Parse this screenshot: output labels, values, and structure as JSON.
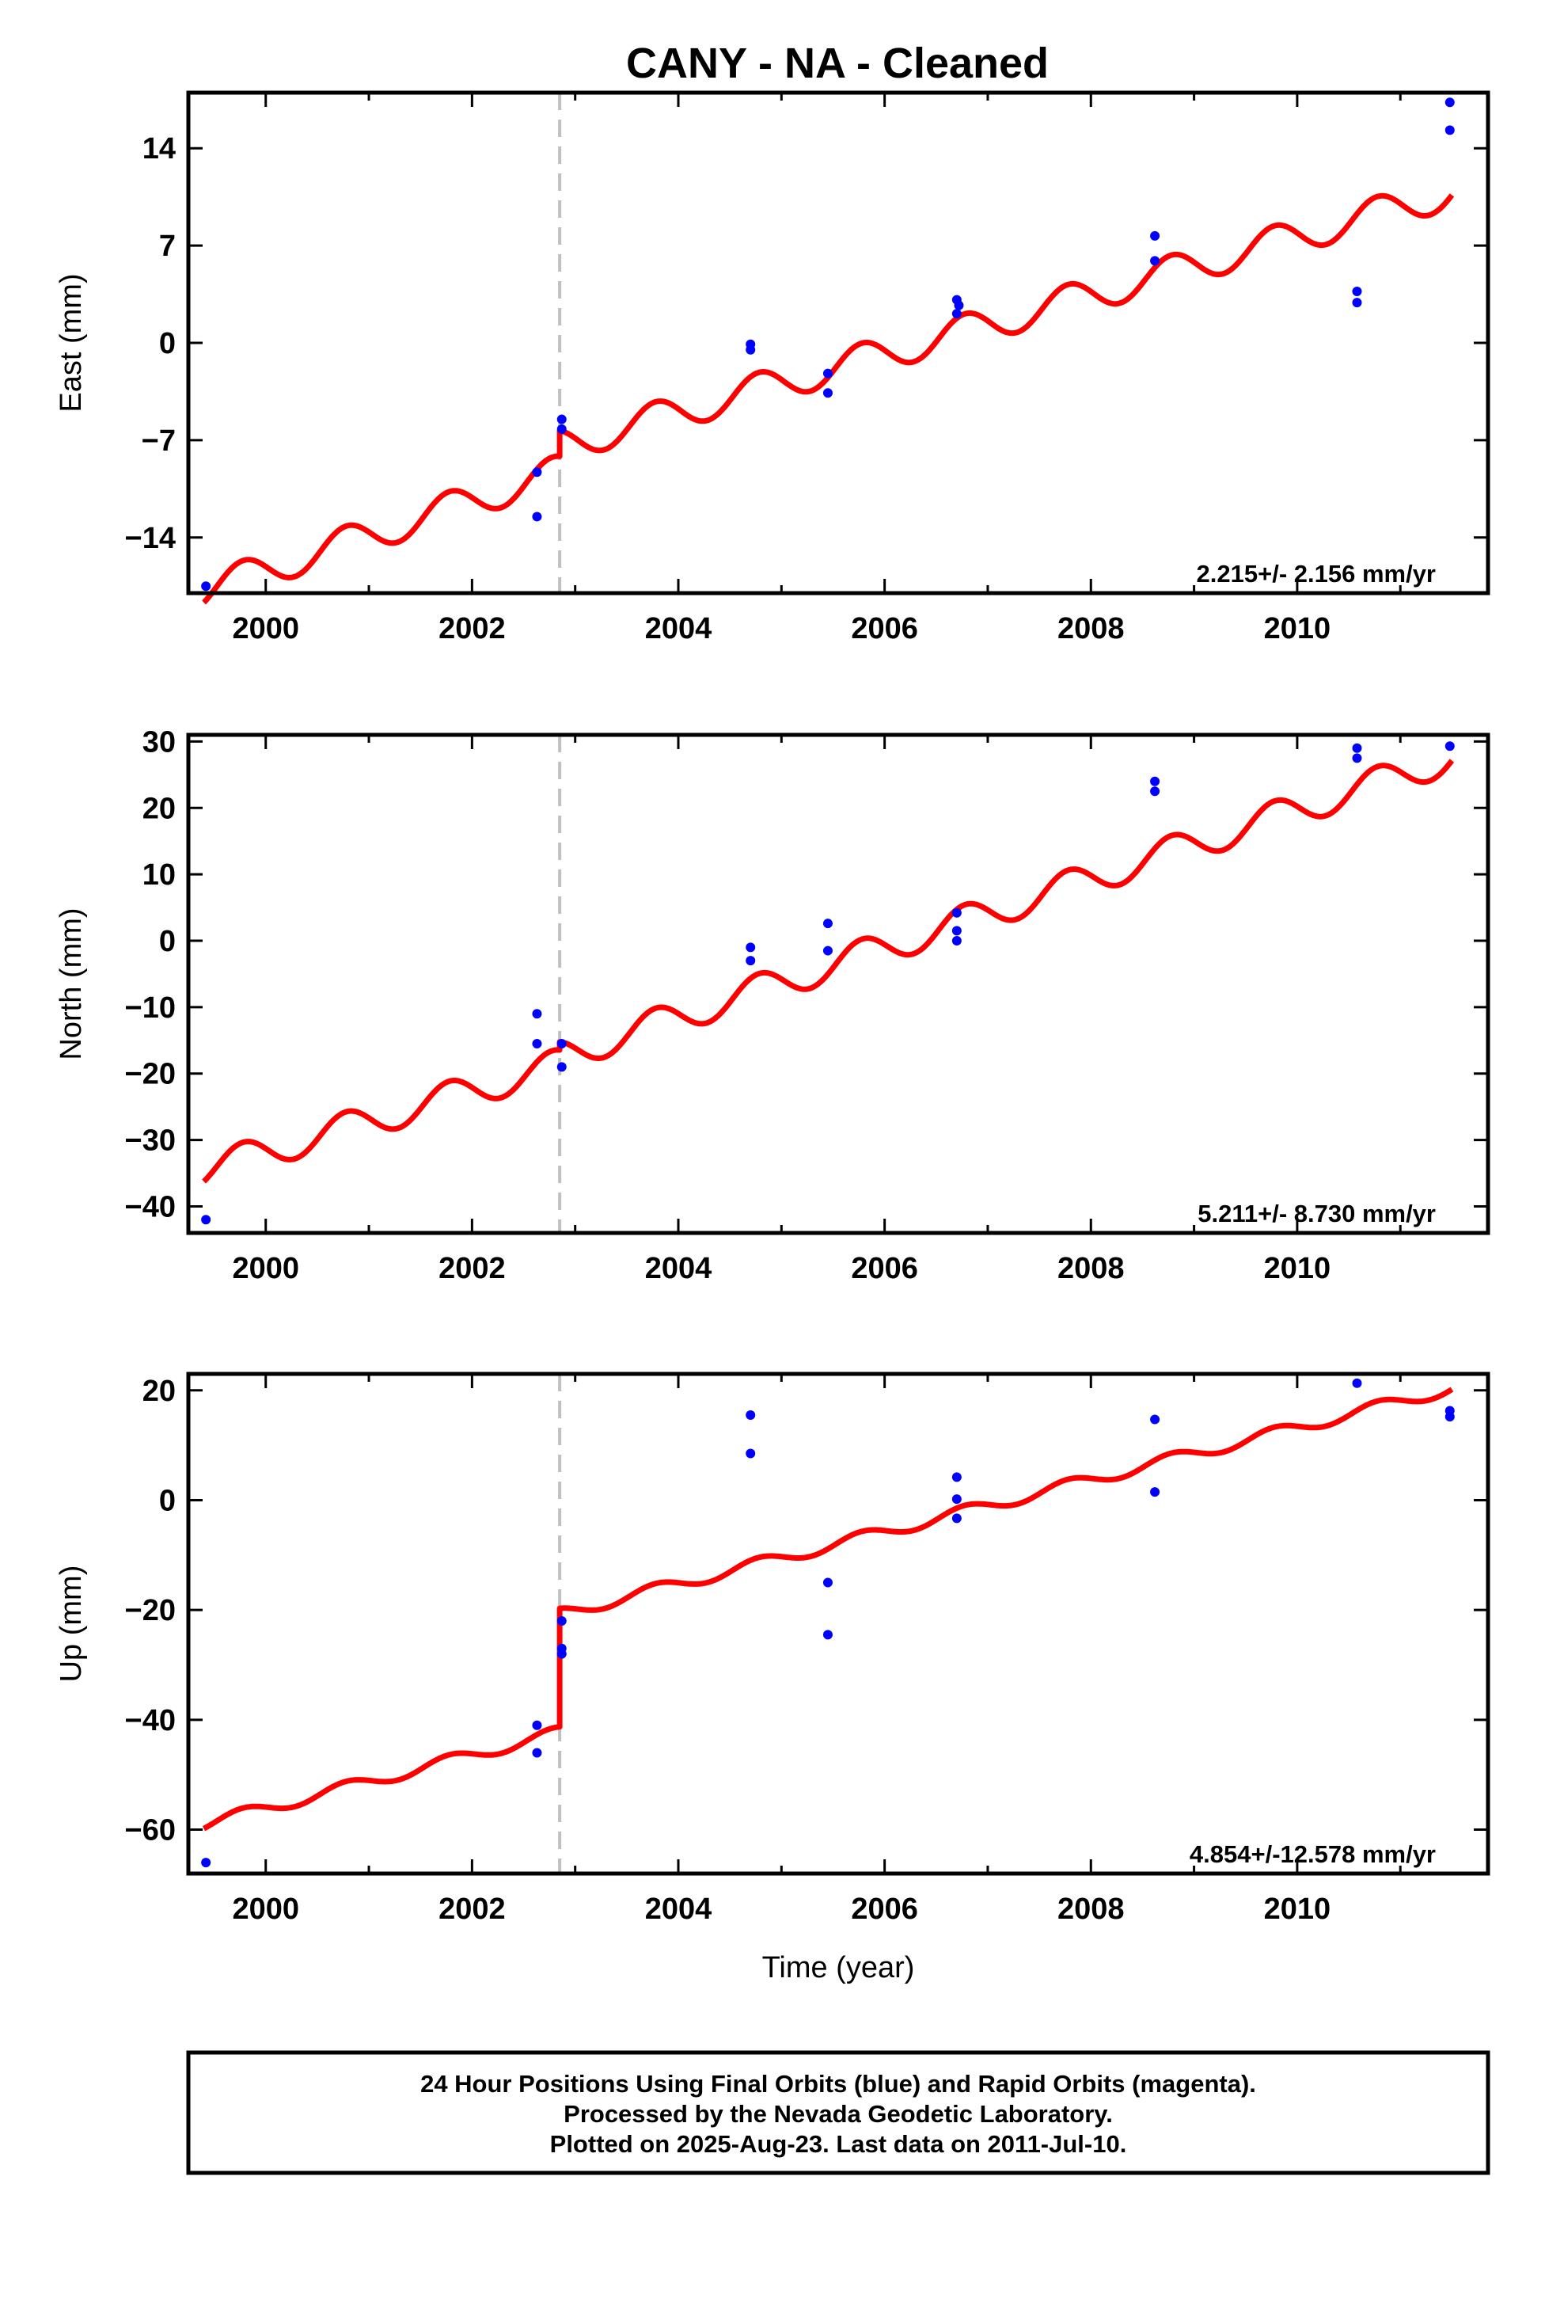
{
  "title": "CANY  - NA - Cleaned",
  "colors": {
    "model": "#ff0000",
    "final_orbits": "#0000ff",
    "rapid_orbits": "#ff00ff",
    "step_line": "#c0c0c0",
    "frame": "#000000"
  },
  "footer": {
    "lines": [
      "24 Hour Positions Using Final Orbits (blue) and Rapid Orbits (magenta).",
      "Processed by the Nevada Geodetic Laboratory.",
      "Plotted on 2025-Aug-23. Last data on 2011-Jul-10."
    ]
  },
  "chart_data": [
    {
      "type": "scatter",
      "panel": "east",
      "ylabel": "East (mm)",
      "xlabel": "",
      "xlim": [
        1999.25,
        2011.85
      ],
      "ylim": [
        -18,
        18
      ],
      "xticks": [
        2000,
        2002,
        2004,
        2006,
        2008,
        2010
      ],
      "yticks": [
        14,
        7,
        0,
        -7,
        -14
      ],
      "ytick_labels": [
        "14",
        "7",
        "0",
        "−7",
        "−14"
      ],
      "grid": false,
      "rate_text": "2.215+/- 2.156 mm/yr",
      "step_epoch": 2002.85,
      "series": [
        {
          "role": "final-orbits",
          "x": [
            1999.42,
            2002.63,
            2002.63,
            2002.87,
            2002.87,
            2004.7,
            2004.7,
            2005.45,
            2005.45,
            2006.7,
            2006.7,
            2006.72,
            2008.62,
            2008.62,
            2010.58,
            2010.58,
            2011.48,
            2011.48
          ],
          "y": [
            -17.5,
            -9.3,
            -12.5,
            -5.5,
            -6.2,
            -0.1,
            -0.5,
            -2.2,
            -3.6,
            3.1,
            2.1,
            2.7,
            7.7,
            5.9,
            3.7,
            2.9,
            17.3,
            15.3
          ]
        },
        {
          "role": "model",
          "trend": {
            "t0": 1999.4,
            "segments": [
              {
                "start": 1999.4,
                "end": 2002.85,
                "y0": -17.8,
                "slope": 2.48
              },
              {
                "start": 2002.85,
                "end": 2011.5,
                "y0": -7.4,
                "slope": 2.11
              }
            ]
          },
          "seasonal": {
            "amplitude": 1.2,
            "phase_year": 0.53
          }
        }
      ]
    },
    {
      "type": "scatter",
      "panel": "north",
      "ylabel": "North (mm)",
      "xlabel": "",
      "xlim": [
        1999.25,
        2011.85
      ],
      "ylim": [
        -44,
        31
      ],
      "xticks": [
        2000,
        2002,
        2004,
        2006,
        2008,
        2010
      ],
      "yticks": [
        30,
        20,
        10,
        0,
        -10,
        -20,
        -30,
        -40
      ],
      "ytick_labels": [
        "30",
        "20",
        "10",
        "0",
        "−10",
        "−20",
        "−30",
        "−40"
      ],
      "grid": false,
      "rate_text": "5.211+/- 8.730 mm/yr",
      "step_epoch": 2002.85,
      "series": [
        {
          "role": "final-orbits",
          "x": [
            1999.42,
            2002.63,
            2002.63,
            2002.87,
            2002.87,
            2004.7,
            2004.7,
            2005.45,
            2005.45,
            2006.7,
            2006.7,
            2006.7,
            2008.62,
            2008.62,
            2010.58,
            2010.58,
            2011.48
          ],
          "y": [
            -42,
            -11,
            -15.5,
            -15.5,
            -19,
            -1,
            -3,
            2.6,
            -1.5,
            4.2,
            1.5,
            0,
            24,
            22.5,
            29,
            27.5,
            29.3
          ]
        },
        {
          "role": "model",
          "trend": {
            "t0": 1999.4,
            "segments": [
              {
                "start": 1999.4,
                "end": 2002.85,
                "y0": -34.5,
                "slope": 4.6
              },
              {
                "start": 2002.85,
                "end": 2011.5,
                "y0": -17.4,
                "slope": 5.2
              }
            ]
          },
          "seasonal": {
            "amplitude": 2.4,
            "phase_year": 0.53
          }
        }
      ]
    },
    {
      "type": "scatter",
      "panel": "up",
      "ylabel": "Up (mm)",
      "xlabel": "Time (year)",
      "xlim": [
        1999.25,
        2011.85
      ],
      "ylim": [
        -68,
        23
      ],
      "xticks": [
        2000,
        2002,
        2004,
        2006,
        2008,
        2010
      ],
      "yticks": [
        20,
        0,
        -20,
        -40,
        -60
      ],
      "ytick_labels": [
        "20",
        "0",
        "−20",
        "−40",
        "−60"
      ],
      "grid": false,
      "rate_text": "4.854+/-12.578 mm/yr",
      "step_epoch": 2002.85,
      "series": [
        {
          "role": "final-orbits",
          "x": [
            1999.42,
            2002.63,
            2002.63,
            2002.87,
            2002.87,
            2002.87,
            2004.7,
            2004.7,
            2005.45,
            2005.45,
            2006.7,
            2006.7,
            2006.7,
            2008.62,
            2008.62,
            2010.58,
            2011.48,
            2011.48
          ],
          "y": [
            -66,
            -41,
            -46,
            -22,
            -27,
            -28,
            15.5,
            8.5,
            -15,
            -24.5,
            4.2,
            0.2,
            -3.3,
            14.7,
            1.5,
            21.3,
            16.3,
            15.2
          ]
        },
        {
          "role": "model",
          "trend": {
            "t0": 1999.4,
            "segments": [
              {
                "start": 1999.4,
                "end": 2002.85,
                "y0": -59,
                "slope": 4.85
              },
              {
                "start": 2002.85,
                "end": 2011.5,
                "y0": -20.7,
                "slope": 4.75
              }
            ]
          },
          "seasonal": {
            "amplitude": 1.1,
            "phase_year": 0.53
          }
        }
      ]
    }
  ]
}
